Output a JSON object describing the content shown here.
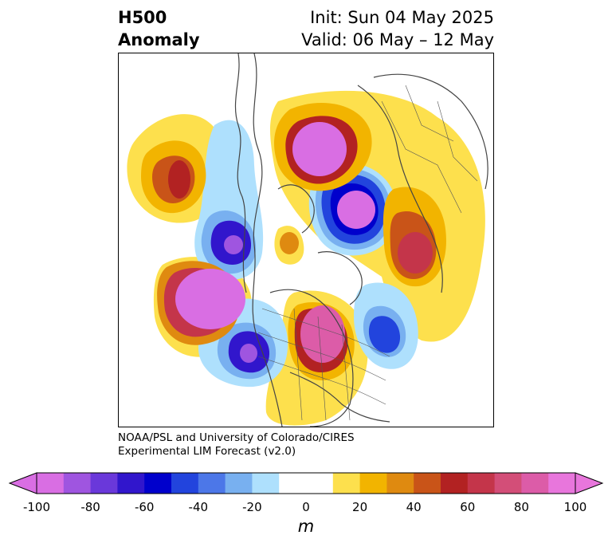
{
  "header": {
    "title_line1": "H500",
    "title_line2": "Anomaly",
    "init": "Init: Sun 04 May 2025",
    "valid": "Valid: 06 May – 12 May"
  },
  "credit": {
    "line1": "NOAA/PSL and University of Colorado/CIRES",
    "line2": "Experimental LIM Forecast (v2.0)"
  },
  "colorbar": {
    "unit": "m",
    "ticks": [
      "-100",
      "-80",
      "-60",
      "-40",
      "-20",
      "0",
      "20",
      "40",
      "60",
      "80",
      "100"
    ],
    "colors": [
      "#d96ee3",
      "#9f55e0",
      "#6a38da",
      "#3116cc",
      "#0000cc",
      "#2244dd",
      "#4c77e8",
      "#78b0f0",
      "#aee0fd",
      "#ffffff",
      "#ffffff",
      "#fde04d",
      "#f2b400",
      "#df8a10",
      "#c95418",
      "#b22222",
      "#c4354a",
      "#d34e78",
      "#dc5ca8",
      "#e876dc"
    ],
    "extend_min_color": "#d96ee3",
    "extend_max_color": "#e876dc"
  }
}
